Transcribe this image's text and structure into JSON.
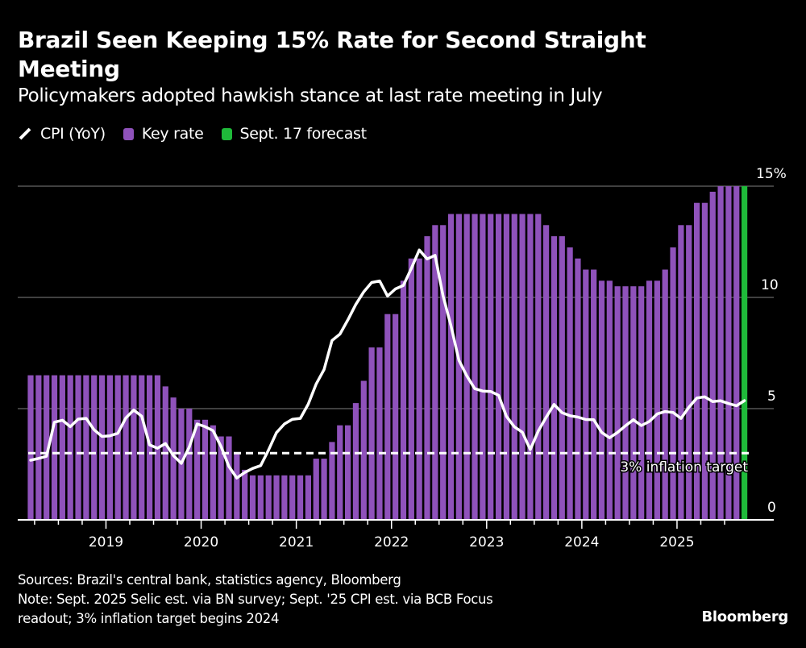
{
  "header": {
    "title": "Brazil Seen Keeping 15% Rate for Second Straight Meeting",
    "subtitle": "Policymakers adopted hawkish stance at last rate meeting in July"
  },
  "legend": [
    {
      "label": "CPI (YoY)",
      "icon": "line-icon",
      "color": "#ffffff"
    },
    {
      "label": "Key rate",
      "icon": "square-icon",
      "color": "#8f52bb"
    },
    {
      "label": "Sept. 17 forecast",
      "icon": "square-icon",
      "color": "#1fba3a"
    }
  ],
  "footer": {
    "sources": "Sources: Brazil's central bank, statistics agency, Bloomberg",
    "note_line1": "Note: Sept. 2025 Selic est. via BN survey; Sept. '25 CPI est. via BCB Focus",
    "note_line2": "readout; 3% inflation target begins 2024",
    "brand": "Bloomberg"
  },
  "chart_data": {
    "type": "bar",
    "title": "Brazil Seen Keeping 15% Rate for Second Straight Meeting",
    "subtitle": "Policymakers adopted hawkish stance at last rate meeting in July",
    "xlabel": "",
    "ylabel": "",
    "ylim": [
      0,
      15
    ],
    "y_ticks": [
      {
        "value": 15,
        "label": "15%"
      },
      {
        "value": 10,
        "label": "10"
      },
      {
        "value": 5,
        "label": "5"
      },
      {
        "value": 0,
        "label": "0"
      }
    ],
    "y_axis_side": "right",
    "grid": true,
    "legend_position": "top-left",
    "x_start": "2018-03",
    "x_end": "2025-09",
    "x_tick_labels": [
      "2019",
      "2020",
      "2021",
      "2022",
      "2023",
      "2024",
      "2025"
    ],
    "colors": {
      "key_rate": "#8f52bb",
      "forecast": "#1fba3a",
      "cpi": "#ffffff",
      "grid": "#555555",
      "target": "#ffffff"
    },
    "series": [
      {
        "name": "Key rate",
        "type": "bar",
        "values": [
          6.5,
          6.5,
          6.5,
          6.5,
          6.5,
          6.5,
          6.5,
          6.5,
          6.5,
          6.5,
          6.5,
          6.5,
          6.5,
          6.5,
          6.5,
          6.5,
          6.5,
          6.0,
          5.5,
          5.0,
          5.0,
          4.5,
          4.5,
          4.25,
          3.75,
          3.75,
          3.0,
          2.25,
          2.0,
          2.0,
          2.0,
          2.0,
          2.0,
          2.0,
          2.0,
          2.0,
          2.75,
          2.75,
          3.5,
          4.25,
          4.25,
          5.25,
          6.25,
          7.75,
          7.75,
          9.25,
          9.25,
          10.75,
          11.75,
          11.75,
          12.75,
          13.25,
          13.25,
          13.75,
          13.75,
          13.75,
          13.75,
          13.75,
          13.75,
          13.75,
          13.75,
          13.75,
          13.75,
          13.75,
          13.75,
          13.25,
          12.75,
          12.75,
          12.25,
          11.75,
          11.25,
          11.25,
          10.75,
          10.75,
          10.5,
          10.5,
          10.5,
          10.5,
          10.75,
          10.75,
          11.25,
          12.25,
          13.25,
          13.25,
          14.25,
          14.25,
          14.75,
          15.0,
          15.0,
          15.0
        ]
      },
      {
        "name": "Sept. 17 forecast",
        "type": "bar",
        "x": "2025-09",
        "values": [
          15.0
        ]
      },
      {
        "name": "CPI (YoY)",
        "type": "line",
        "values": [
          2.68,
          2.76,
          2.86,
          4.39,
          4.48,
          4.19,
          4.53,
          4.56,
          4.05,
          3.75,
          3.78,
          3.89,
          4.58,
          4.94,
          4.66,
          3.37,
          3.22,
          3.43,
          2.89,
          2.54,
          3.27,
          4.31,
          4.19,
          4.01,
          3.3,
          2.4,
          1.88,
          2.13,
          2.31,
          2.44,
          3.14,
          3.92,
          4.31,
          4.52,
          4.56,
          5.2,
          6.1,
          6.76,
          8.06,
          8.35,
          8.99,
          9.68,
          10.25,
          10.67,
          10.74,
          10.06,
          10.38,
          10.54,
          11.3,
          12.13,
          11.73,
          11.89,
          10.07,
          8.73,
          7.17,
          6.47,
          5.9,
          5.79,
          5.77,
          5.6,
          4.65,
          4.18,
          3.94,
          3.16,
          3.99,
          4.61,
          5.19,
          4.82,
          4.68,
          4.62,
          4.51,
          4.5,
          3.93,
          3.69,
          3.93,
          4.23,
          4.5,
          4.24,
          4.42,
          4.76,
          4.87,
          4.83,
          4.56,
          5.06,
          5.48,
          5.53,
          5.32,
          5.35,
          5.23,
          5.13,
          5.36
        ]
      }
    ],
    "annotations": [
      {
        "type": "hline",
        "value": 3,
        "style": "dashed",
        "label": "3% inflation target"
      }
    ]
  }
}
